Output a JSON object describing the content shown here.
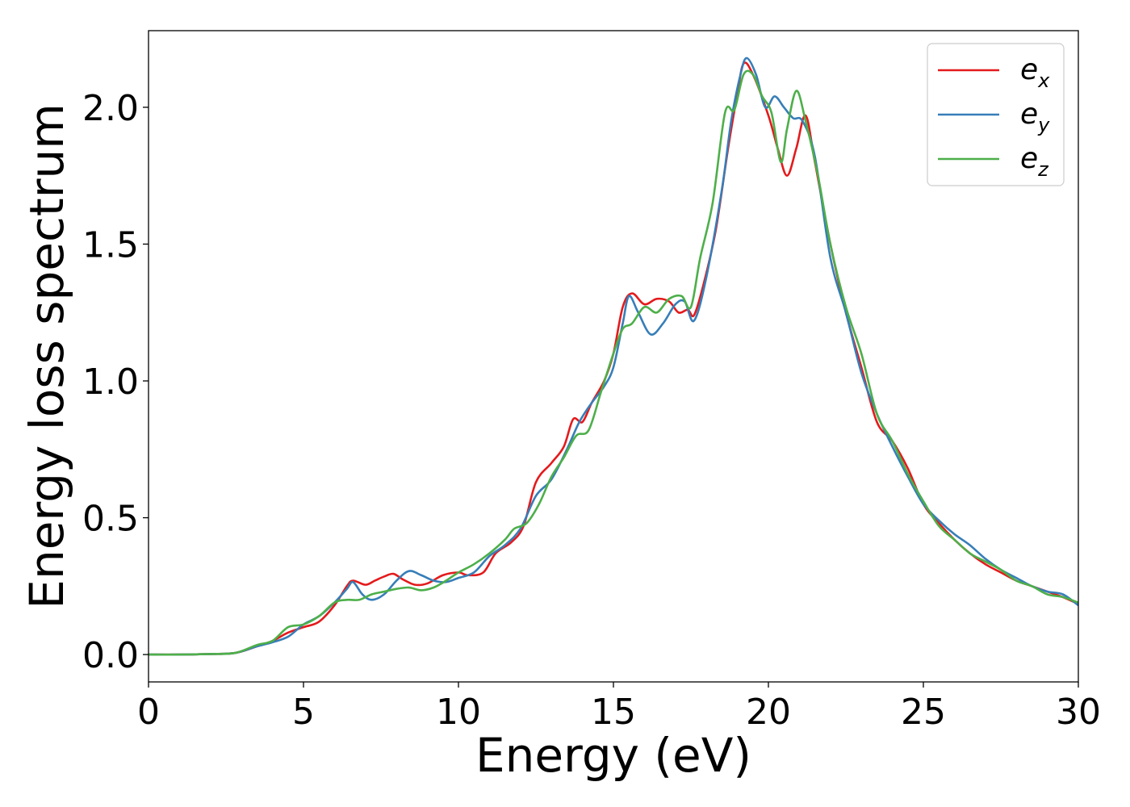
{
  "chart_data": {
    "type": "line",
    "title": "",
    "xlabel": "Energy (eV)",
    "ylabel": "Energy loss spectrum",
    "xlim": [
      0,
      30
    ],
    "ylim": [
      -0.1,
      2.28
    ],
    "xticks": [
      0,
      5,
      10,
      15,
      20,
      25,
      30
    ],
    "xtick_labels": [
      "0",
      "5",
      "10",
      "15",
      "20",
      "25",
      "30"
    ],
    "yticks": [
      0.0,
      0.5,
      1.0,
      1.5,
      2.0
    ],
    "ytick_labels": [
      "0.0",
      "0.5",
      "1.0",
      "1.5",
      "2.0"
    ],
    "grid": false,
    "legend_position": "top-right",
    "series": [
      {
        "name": "e_x",
        "legend_base": "e",
        "legend_sub": "x",
        "color": "#e41a1c",
        "points": [
          [
            0,
            0.0
          ],
          [
            1,
            0.0
          ],
          [
            2,
            0.002
          ],
          [
            2.8,
            0.006
          ],
          [
            3.5,
            0.03
          ],
          [
            4,
            0.05
          ],
          [
            4.5,
            0.08
          ],
          [
            5,
            0.1
          ],
          [
            5.5,
            0.12
          ],
          [
            6,
            0.18
          ],
          [
            6.4,
            0.25
          ],
          [
            6.6,
            0.27
          ],
          [
            7,
            0.255
          ],
          [
            7.3,
            0.27
          ],
          [
            7.6,
            0.285
          ],
          [
            7.9,
            0.295
          ],
          [
            8.2,
            0.275
          ],
          [
            8.6,
            0.255
          ],
          [
            9,
            0.26
          ],
          [
            9.5,
            0.29
          ],
          [
            10,
            0.3
          ],
          [
            10.3,
            0.29
          ],
          [
            10.8,
            0.3
          ],
          [
            11.2,
            0.37
          ],
          [
            11.7,
            0.41
          ],
          [
            12.1,
            0.47
          ],
          [
            12.5,
            0.63
          ],
          [
            13,
            0.7
          ],
          [
            13.4,
            0.76
          ],
          [
            13.7,
            0.86
          ],
          [
            14,
            0.85
          ],
          [
            14.3,
            0.92
          ],
          [
            14.7,
            1.0
          ],
          [
            15,
            1.1
          ],
          [
            15.3,
            1.27
          ],
          [
            15.6,
            1.32
          ],
          [
            16,
            1.28
          ],
          [
            16.4,
            1.3
          ],
          [
            16.8,
            1.29
          ],
          [
            17.1,
            1.25
          ],
          [
            17.4,
            1.26
          ],
          [
            17.6,
            1.24
          ],
          [
            17.9,
            1.35
          ],
          [
            18.3,
            1.55
          ],
          [
            18.7,
            1.85
          ],
          [
            19,
            2.05
          ],
          [
            19.2,
            2.16
          ],
          [
            19.5,
            2.12
          ],
          [
            20,
            1.97
          ],
          [
            20.3,
            1.85
          ],
          [
            20.6,
            1.75
          ],
          [
            20.9,
            1.85
          ],
          [
            21.2,
            1.97
          ],
          [
            21.5,
            1.8
          ],
          [
            22,
            1.5
          ],
          [
            22.5,
            1.25
          ],
          [
            23,
            1.05
          ],
          [
            23.5,
            0.85
          ],
          [
            24,
            0.78
          ],
          [
            24.5,
            0.68
          ],
          [
            25,
            0.55
          ],
          [
            25.5,
            0.48
          ],
          [
            26,
            0.42
          ],
          [
            26.5,
            0.37
          ],
          [
            27,
            0.33
          ],
          [
            27.5,
            0.3
          ],
          [
            28,
            0.27
          ],
          [
            28.5,
            0.25
          ],
          [
            29,
            0.23
          ],
          [
            29.5,
            0.21
          ],
          [
            30,
            0.185
          ]
        ]
      },
      {
        "name": "e_y",
        "legend_base": "e",
        "legend_sub": "y",
        "color": "#377eb8",
        "points": [
          [
            0,
            0.0
          ],
          [
            1,
            0.0
          ],
          [
            2,
            0.002
          ],
          [
            2.8,
            0.006
          ],
          [
            3.5,
            0.03
          ],
          [
            4,
            0.045
          ],
          [
            4.5,
            0.065
          ],
          [
            5,
            0.11
          ],
          [
            5.5,
            0.14
          ],
          [
            6,
            0.19
          ],
          [
            6.4,
            0.24
          ],
          [
            6.6,
            0.265
          ],
          [
            6.9,
            0.22
          ],
          [
            7.2,
            0.2
          ],
          [
            7.6,
            0.22
          ],
          [
            8,
            0.27
          ],
          [
            8.4,
            0.305
          ],
          [
            8.8,
            0.29
          ],
          [
            9.2,
            0.27
          ],
          [
            9.6,
            0.265
          ],
          [
            10,
            0.28
          ],
          [
            10.5,
            0.3
          ],
          [
            11,
            0.36
          ],
          [
            11.5,
            0.4
          ],
          [
            12,
            0.46
          ],
          [
            12.5,
            0.58
          ],
          [
            13,
            0.64
          ],
          [
            13.5,
            0.75
          ],
          [
            13.9,
            0.85
          ],
          [
            14.3,
            0.92
          ],
          [
            14.7,
            0.98
          ],
          [
            15,
            1.05
          ],
          [
            15.3,
            1.21
          ],
          [
            15.5,
            1.31
          ],
          [
            15.8,
            1.25
          ],
          [
            16.2,
            1.17
          ],
          [
            16.6,
            1.21
          ],
          [
            17,
            1.28
          ],
          [
            17.3,
            1.29
          ],
          [
            17.6,
            1.22
          ],
          [
            18,
            1.38
          ],
          [
            18.5,
            1.7
          ],
          [
            18.8,
            1.95
          ],
          [
            19.1,
            2.12
          ],
          [
            19.3,
            2.18
          ],
          [
            19.6,
            2.12
          ],
          [
            19.9,
            2.0
          ],
          [
            20.2,
            2.04
          ],
          [
            20.5,
            2.0
          ],
          [
            20.8,
            1.96
          ],
          [
            21.1,
            1.95
          ],
          [
            21.5,
            1.82
          ],
          [
            22,
            1.45
          ],
          [
            22.5,
            1.25
          ],
          [
            23,
            1.03
          ],
          [
            23.5,
            0.88
          ],
          [
            24,
            0.76
          ],
          [
            24.5,
            0.65
          ],
          [
            25,
            0.55
          ],
          [
            25.5,
            0.49
          ],
          [
            26,
            0.44
          ],
          [
            26.5,
            0.4
          ],
          [
            27,
            0.35
          ],
          [
            27.5,
            0.31
          ],
          [
            28,
            0.28
          ],
          [
            28.5,
            0.25
          ],
          [
            29,
            0.23
          ],
          [
            29.5,
            0.22
          ],
          [
            30,
            0.18
          ]
        ]
      },
      {
        "name": "e_z",
        "legend_base": "e",
        "legend_sub": "z",
        "color": "#4daf4a",
        "points": [
          [
            0,
            0.0
          ],
          [
            1,
            0.0
          ],
          [
            2,
            0.002
          ],
          [
            2.8,
            0.006
          ],
          [
            3.5,
            0.035
          ],
          [
            4,
            0.05
          ],
          [
            4.5,
            0.1
          ],
          [
            5,
            0.11
          ],
          [
            5.5,
            0.14
          ],
          [
            6,
            0.19
          ],
          [
            6.4,
            0.2
          ],
          [
            6.8,
            0.2
          ],
          [
            7.2,
            0.22
          ],
          [
            7.6,
            0.23
          ],
          [
            8,
            0.24
          ],
          [
            8.4,
            0.245
          ],
          [
            8.8,
            0.235
          ],
          [
            9.2,
            0.245
          ],
          [
            9.6,
            0.27
          ],
          [
            10,
            0.3
          ],
          [
            10.5,
            0.33
          ],
          [
            11,
            0.37
          ],
          [
            11.5,
            0.42
          ],
          [
            11.8,
            0.46
          ],
          [
            12.2,
            0.48
          ],
          [
            12.6,
            0.55
          ],
          [
            13,
            0.65
          ],
          [
            13.4,
            0.72
          ],
          [
            13.8,
            0.8
          ],
          [
            14.2,
            0.82
          ],
          [
            14.6,
            0.96
          ],
          [
            15,
            1.1
          ],
          [
            15.3,
            1.19
          ],
          [
            15.6,
            1.21
          ],
          [
            16,
            1.27
          ],
          [
            16.4,
            1.25
          ],
          [
            16.8,
            1.3
          ],
          [
            17.2,
            1.31
          ],
          [
            17.5,
            1.27
          ],
          [
            17.8,
            1.45
          ],
          [
            18.2,
            1.65
          ],
          [
            18.6,
            1.98
          ],
          [
            18.9,
            1.99
          ],
          [
            19.2,
            2.12
          ],
          [
            19.5,
            2.12
          ],
          [
            19.8,
            2.04
          ],
          [
            20.1,
            1.98
          ],
          [
            20.4,
            1.8
          ],
          [
            20.6,
            1.92
          ],
          [
            20.9,
            2.06
          ],
          [
            21.2,
            1.95
          ],
          [
            21.6,
            1.75
          ],
          [
            22,
            1.5
          ],
          [
            22.5,
            1.27
          ],
          [
            23,
            1.1
          ],
          [
            23.5,
            0.88
          ],
          [
            24,
            0.78
          ],
          [
            24.5,
            0.66
          ],
          [
            25,
            0.56
          ],
          [
            25.5,
            0.47
          ],
          [
            26,
            0.42
          ],
          [
            26.5,
            0.37
          ],
          [
            27,
            0.34
          ],
          [
            27.5,
            0.31
          ],
          [
            28,
            0.27
          ],
          [
            28.5,
            0.25
          ],
          [
            29,
            0.22
          ],
          [
            29.5,
            0.21
          ],
          [
            30,
            0.19
          ]
        ]
      }
    ]
  }
}
